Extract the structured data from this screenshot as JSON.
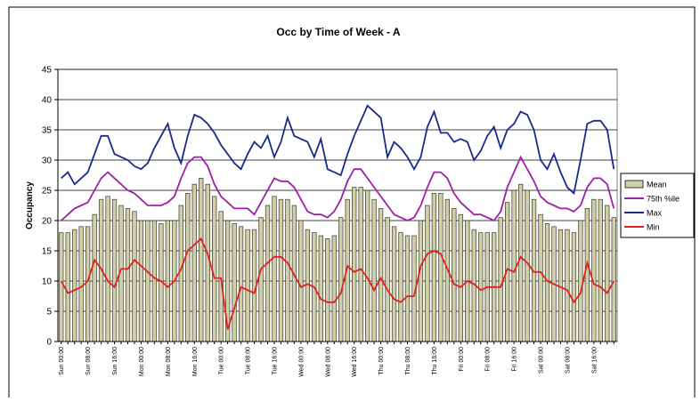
{
  "chart_data": {
    "type": "combo",
    "title": "Occ by Time of Week - A",
    "y_label": "Occupancy",
    "categories": [
      "Sun 00:00",
      null,
      null,
      null,
      "Sun 08:00",
      null,
      null,
      null,
      "Sun 16:00",
      null,
      null,
      null,
      "Mon 00:00",
      null,
      null,
      null,
      "Mon 08:00",
      null,
      null,
      null,
      "Mon 16:00",
      null,
      null,
      null,
      "Tue 00:00",
      null,
      null,
      null,
      "Tue 08:00",
      null,
      null,
      null,
      "Tue 16:00",
      null,
      null,
      null,
      "Wed 00:00",
      null,
      null,
      null,
      "Wed 08:00",
      null,
      null,
      null,
      "Wed 16:00",
      null,
      null,
      null,
      "Thu 00:00",
      null,
      null,
      null,
      "Thu 08:00",
      null,
      null,
      null,
      "Thu 16:00",
      null,
      null,
      null,
      "Fri 00:00",
      null,
      null,
      null,
      "Fri 08:00",
      null,
      null,
      null,
      "Fri 16:00",
      null,
      null,
      null,
      "Sat 00:00",
      null,
      null,
      null,
      "Sat 08:00",
      null,
      null,
      null,
      "Sat 16:00",
      null,
      null,
      null
    ],
    "series": [
      {
        "name": "Mean",
        "type": "bar",
        "color": "#cfcfa8",
        "values": [
          18,
          18,
          18.5,
          19,
          19,
          21,
          23.5,
          24,
          23.5,
          22.5,
          22,
          21.5,
          20,
          20,
          20,
          19.5,
          20,
          20,
          22.5,
          24.5,
          26,
          27,
          26,
          24,
          21.5,
          20,
          19.5,
          19,
          18.5,
          18.5,
          20.5,
          22.5,
          24,
          23.5,
          23.5,
          22.5,
          20,
          18.5,
          18,
          17.5,
          17,
          17.5,
          20.5,
          23.5,
          25.5,
          25.5,
          25,
          23.5,
          22,
          20.5,
          19,
          18,
          17.5,
          17.5,
          20,
          22.5,
          24.5,
          24.5,
          23.5,
          22,
          21,
          20,
          18.5,
          18,
          18,
          18,
          20.5,
          23,
          25,
          26,
          25,
          23.5,
          21,
          19.5,
          19,
          18.5,
          18.5,
          18,
          20,
          22,
          23.5,
          23.5,
          22.5,
          20.5
        ]
      },
      {
        "name": "75th %ile",
        "type": "line",
        "color": "#a020a8",
        "values": [
          20,
          21,
          22,
          22.5,
          23,
          25,
          27,
          28,
          27,
          26,
          25,
          24.5,
          23.5,
          22.5,
          22.5,
          22.5,
          23,
          24,
          27,
          29.5,
          30.5,
          30.5,
          29,
          26,
          24,
          23,
          22,
          22,
          22,
          21,
          23,
          25,
          27,
          26.5,
          26.5,
          25.5,
          23.5,
          21.5,
          21,
          21,
          20.5,
          21.5,
          23.5,
          26.5,
          28.5,
          28.5,
          27,
          25.5,
          24,
          22.5,
          21,
          20.5,
          20,
          20.5,
          22.5,
          25.5,
          28,
          28,
          27,
          24.5,
          23,
          22,
          21,
          21,
          20.5,
          20,
          21.5,
          25.5,
          28,
          30.5,
          28.5,
          26.5,
          24,
          23,
          22.5,
          22,
          22,
          21.5,
          22.5,
          25.5,
          27,
          27,
          26,
          22
        ]
      },
      {
        "name": "Max",
        "type": "line",
        "color": "#1a2a8a",
        "values": [
          27,
          28,
          26,
          27,
          28,
          31,
          34,
          34,
          31,
          30.5,
          30,
          29,
          28.5,
          29.5,
          32,
          34,
          36,
          32,
          29.5,
          34,
          37.5,
          37,
          36,
          34.5,
          32.5,
          31,
          29.5,
          28.5,
          31,
          33,
          32,
          34,
          30.5,
          33,
          37,
          34,
          33.5,
          33,
          30.5,
          33.5,
          28.5,
          28,
          27.5,
          31,
          34,
          36.5,
          39,
          38,
          37,
          30.5,
          33,
          32,
          30.5,
          28.5,
          30.5,
          35.5,
          38,
          34.5,
          34.5,
          33,
          33.5,
          33,
          30,
          31.5,
          34,
          35.5,
          32,
          35,
          36,
          38,
          37.5,
          35,
          30,
          28.5,
          31,
          28,
          25.5,
          24.5,
          30,
          36,
          36.5,
          36.5,
          35,
          28.5
        ]
      },
      {
        "name": "Min",
        "type": "line",
        "color": "#e02020",
        "values": [
          10,
          8,
          8.5,
          9,
          10,
          13.5,
          12,
          10,
          9,
          12,
          12,
          13.5,
          12.5,
          11.5,
          10.5,
          10,
          9,
          10,
          12,
          15,
          16,
          17,
          14.5,
          10.5,
          10.5,
          2,
          5.5,
          9,
          8.5,
          8,
          12,
          13,
          14,
          14,
          13,
          11,
          9,
          9.5,
          9,
          7,
          6.5,
          6.5,
          8,
          12.5,
          11.5,
          12,
          10.5,
          8.5,
          10.5,
          8.5,
          7,
          6.5,
          7.5,
          7.5,
          12.5,
          14.5,
          15,
          14.5,
          12,
          9.5,
          9,
          10,
          9.5,
          8.5,
          9,
          9,
          9,
          12,
          11.5,
          14,
          13,
          11.5,
          11.5,
          10,
          9.5,
          9,
          8.5,
          6.5,
          8,
          13,
          9.5,
          9,
          8,
          10
        ]
      }
    ],
    "ylim": [
      0,
      45
    ],
    "yticks": [
      0,
      5,
      10,
      15,
      20,
      25,
      30,
      35,
      40,
      45
    ],
    "grid": true,
    "legend": "right"
  }
}
